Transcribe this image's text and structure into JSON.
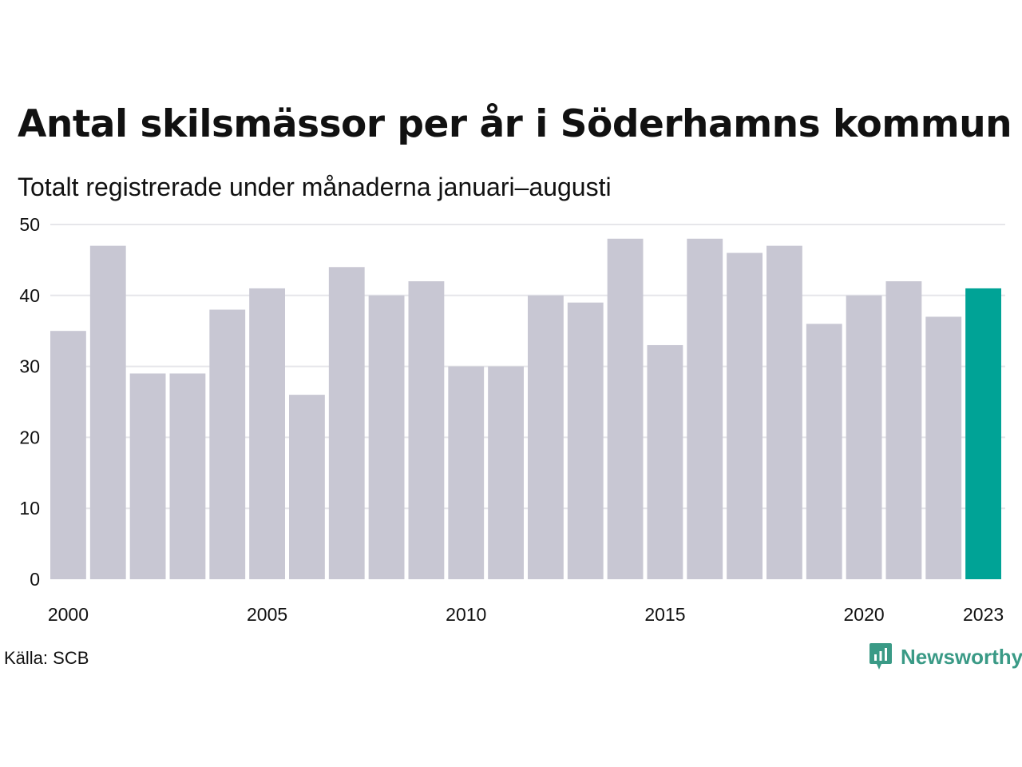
{
  "title": "Antal skilsmässor per år i Söderhamns kommun",
  "subtitle": "Totalt registrerade under månaderna januari–augusti",
  "source": "Källa: SCB",
  "brand": "Newsworthy",
  "colors": {
    "bar": "#c8c7d3",
    "highlight": "#00a396",
    "grid": "#e6e6ea",
    "brand": "#3a9a86"
  },
  "chart_data": {
    "type": "bar",
    "categories": [
      "2000",
      "2001",
      "2002",
      "2003",
      "2004",
      "2005",
      "2006",
      "2007",
      "2008",
      "2009",
      "2010",
      "2011",
      "2012",
      "2013",
      "2014",
      "2015",
      "2016",
      "2017",
      "2018",
      "2019",
      "2020",
      "2021",
      "2022",
      "2023"
    ],
    "values": [
      35,
      47,
      29,
      29,
      38,
      41,
      26,
      44,
      40,
      42,
      30,
      30,
      40,
      39,
      48,
      33,
      48,
      46,
      47,
      36,
      40,
      42,
      37,
      41
    ],
    "highlight": "2023",
    "x_tick_labels": [
      "2000",
      "2005",
      "2010",
      "2015",
      "2020",
      "2023"
    ],
    "y_ticks": [
      0,
      10,
      20,
      30,
      40,
      50
    ],
    "ylim": [
      0,
      50
    ],
    "grid": true
  }
}
